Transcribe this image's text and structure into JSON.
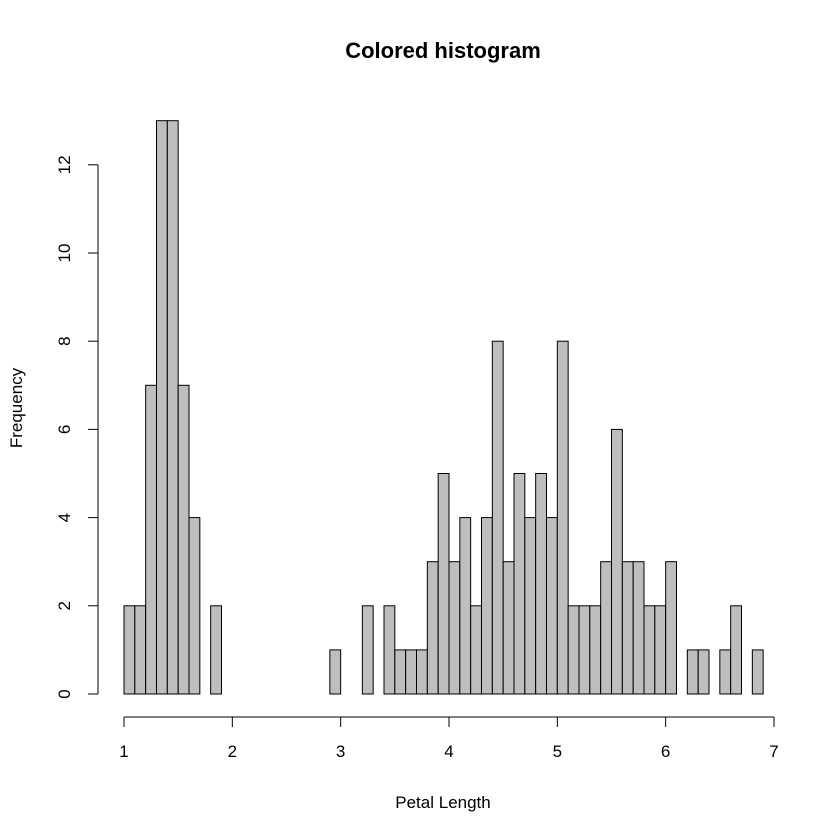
{
  "chart_data": {
    "type": "bar",
    "title": "Colored histogram",
    "xlabel": "Petal Length",
    "ylabel": "Frequency",
    "bar_color": "#bebebe",
    "outline_color": "#000000",
    "xlim": [
      1,
      7
    ],
    "ylim": [
      0,
      13
    ],
    "x_ticks": [
      1,
      2,
      3,
      4,
      5,
      6,
      7
    ],
    "y_ticks": [
      0,
      2,
      4,
      6,
      8,
      10,
      12
    ],
    "bin_start": 1.0,
    "bin_width": 0.1,
    "values": [
      2,
      2,
      7,
      13,
      13,
      7,
      4,
      0,
      2,
      0,
      0,
      0,
      0,
      0,
      0,
      0,
      0,
      0,
      0,
      1,
      0,
      0,
      2,
      0,
      2,
      1,
      1,
      1,
      3,
      5,
      3,
      4,
      2,
      4,
      8,
      3,
      5,
      4,
      5,
      4,
      8,
      2,
      2,
      2,
      3,
      6,
      3,
      3,
      2,
      2,
      3,
      0,
      1,
      1,
      0,
      1,
      2,
      0,
      1
    ]
  }
}
